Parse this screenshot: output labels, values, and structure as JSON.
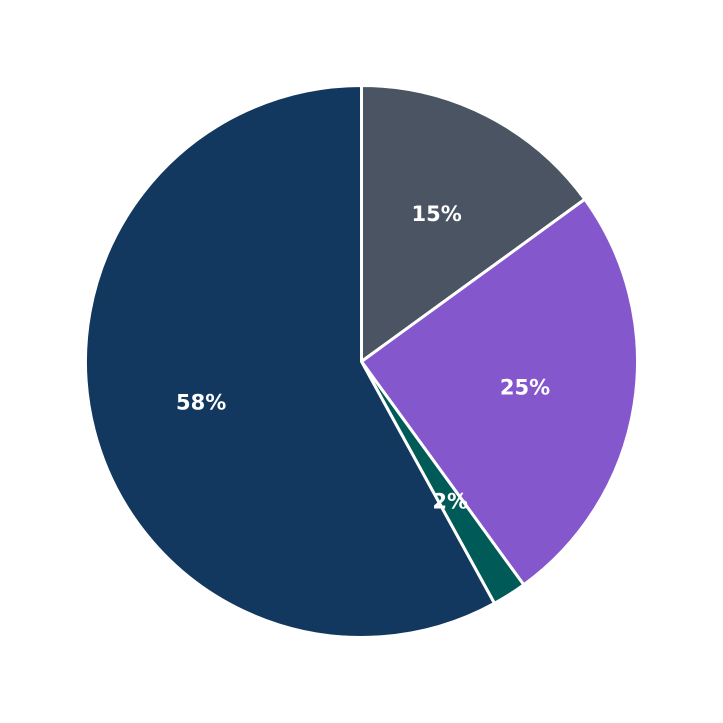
{
  "chart_data": {
    "type": "pie",
    "title": "",
    "start": "top",
    "direction": "clockwise",
    "legend": "none",
    "slices": [
      {
        "value": 15,
        "label": "15%",
        "color": "#4a5462"
      },
      {
        "value": 25,
        "label": "25%",
        "color": "#8557cd"
      },
      {
        "value": 2,
        "label": "2%",
        "color": "#005a57"
      },
      {
        "value": 58,
        "label": "58%",
        "color": "#133860"
      }
    ]
  }
}
